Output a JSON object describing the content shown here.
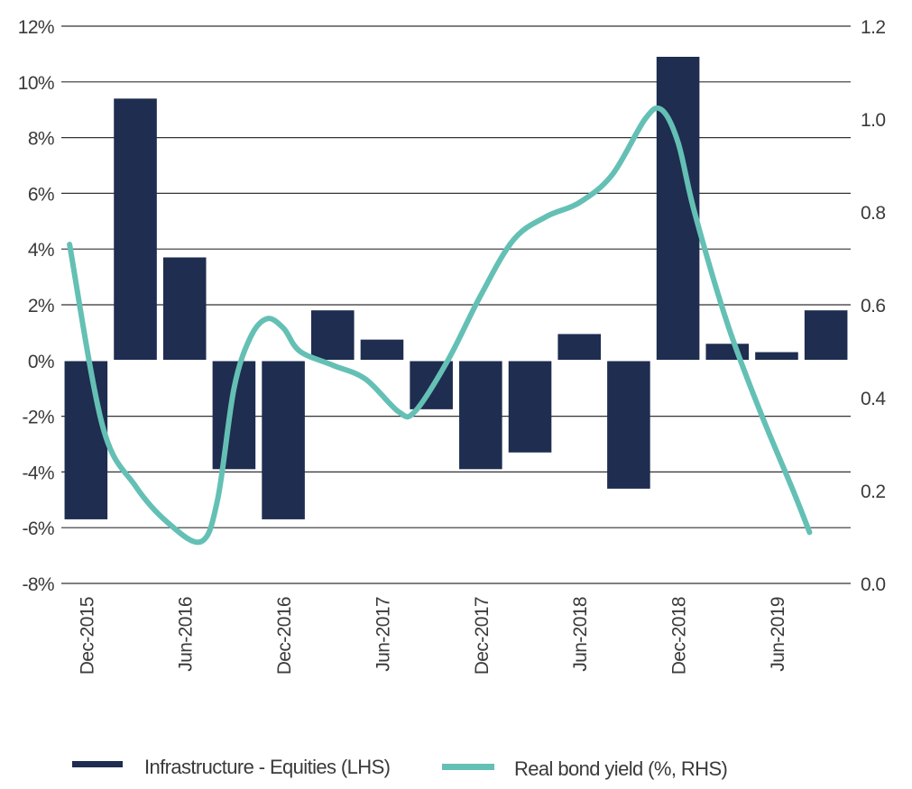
{
  "chart_data": {
    "type": "bar+line",
    "title": "",
    "colors": {
      "bars": "#1e2d50",
      "line": "#64c0b4",
      "grid": "#333333"
    },
    "grid": true,
    "legend_placement": "bottom",
    "categories": [
      "Dec-2015",
      "Mar-2016",
      "Jun-2016",
      "Sep-2016",
      "Dec-2016",
      "Mar-2017",
      "Jun-2017",
      "Sep-2017",
      "Dec-2017",
      "Mar-2018",
      "Jun-2018",
      "Sep-2018",
      "Dec-2018",
      "Mar-2019",
      "Jun-2019",
      "Sep-2019"
    ],
    "x_tick_labels": [
      "Dec-2015",
      "Jun-2016",
      "Dec-2016",
      "Jun-2017",
      "Dec-2017",
      "Jun-2018",
      "Dec-2018",
      "Jun-2019"
    ],
    "left_axis": {
      "ylim": [
        -8,
        12
      ],
      "ticks": [
        "-8%",
        "-6%",
        "-4%",
        "-2%",
        "0%",
        "2%",
        "4%",
        "6%",
        "8%",
        "10%",
        "12%"
      ]
    },
    "right_axis": {
      "ylim": [
        0,
        1.2
      ],
      "ticks": [
        "0.0",
        "0.2",
        "0.4",
        "0.6",
        "0.8",
        "1.0",
        "1.2"
      ]
    },
    "series": [
      {
        "name": "Infrastructure - Equities (LHS)",
        "type": "bar",
        "axis": "left",
        "values": [
          -5.7,
          9.4,
          3.7,
          -3.9,
          -5.7,
          1.8,
          0.75,
          -1.75,
          -3.9,
          -3.3,
          0.95,
          -4.6,
          10.9,
          0.6,
          0.3,
          1.8
        ]
      },
      {
        "name": "Real bond yield (%, RHS)",
        "type": "line",
        "axis": "right",
        "x": [
          "2015-11",
          "2016-01",
          "2016-03",
          "2016-05",
          "2016-07",
          "2016-08",
          "2016-09",
          "2016-10",
          "2016-11",
          "2016-12",
          "2017-01",
          "2017-03",
          "2017-05",
          "2017-07",
          "2017-08",
          "2017-10",
          "2017-12",
          "2018-02",
          "2018-04",
          "2018-06",
          "2018-08",
          "2018-10",
          "2018-11",
          "2018-12",
          "2019-01",
          "2019-03",
          "2019-05",
          "2019-07",
          "2019-08"
        ],
        "values": [
          0.73,
          0.34,
          0.21,
          0.13,
          0.09,
          0.18,
          0.42,
          0.53,
          0.57,
          0.55,
          0.5,
          0.47,
          0.44,
          0.37,
          0.37,
          0.48,
          0.62,
          0.74,
          0.79,
          0.82,
          0.88,
          1.0,
          1.02,
          0.95,
          0.8,
          0.56,
          0.37,
          0.2,
          0.11
        ]
      }
    ]
  }
}
